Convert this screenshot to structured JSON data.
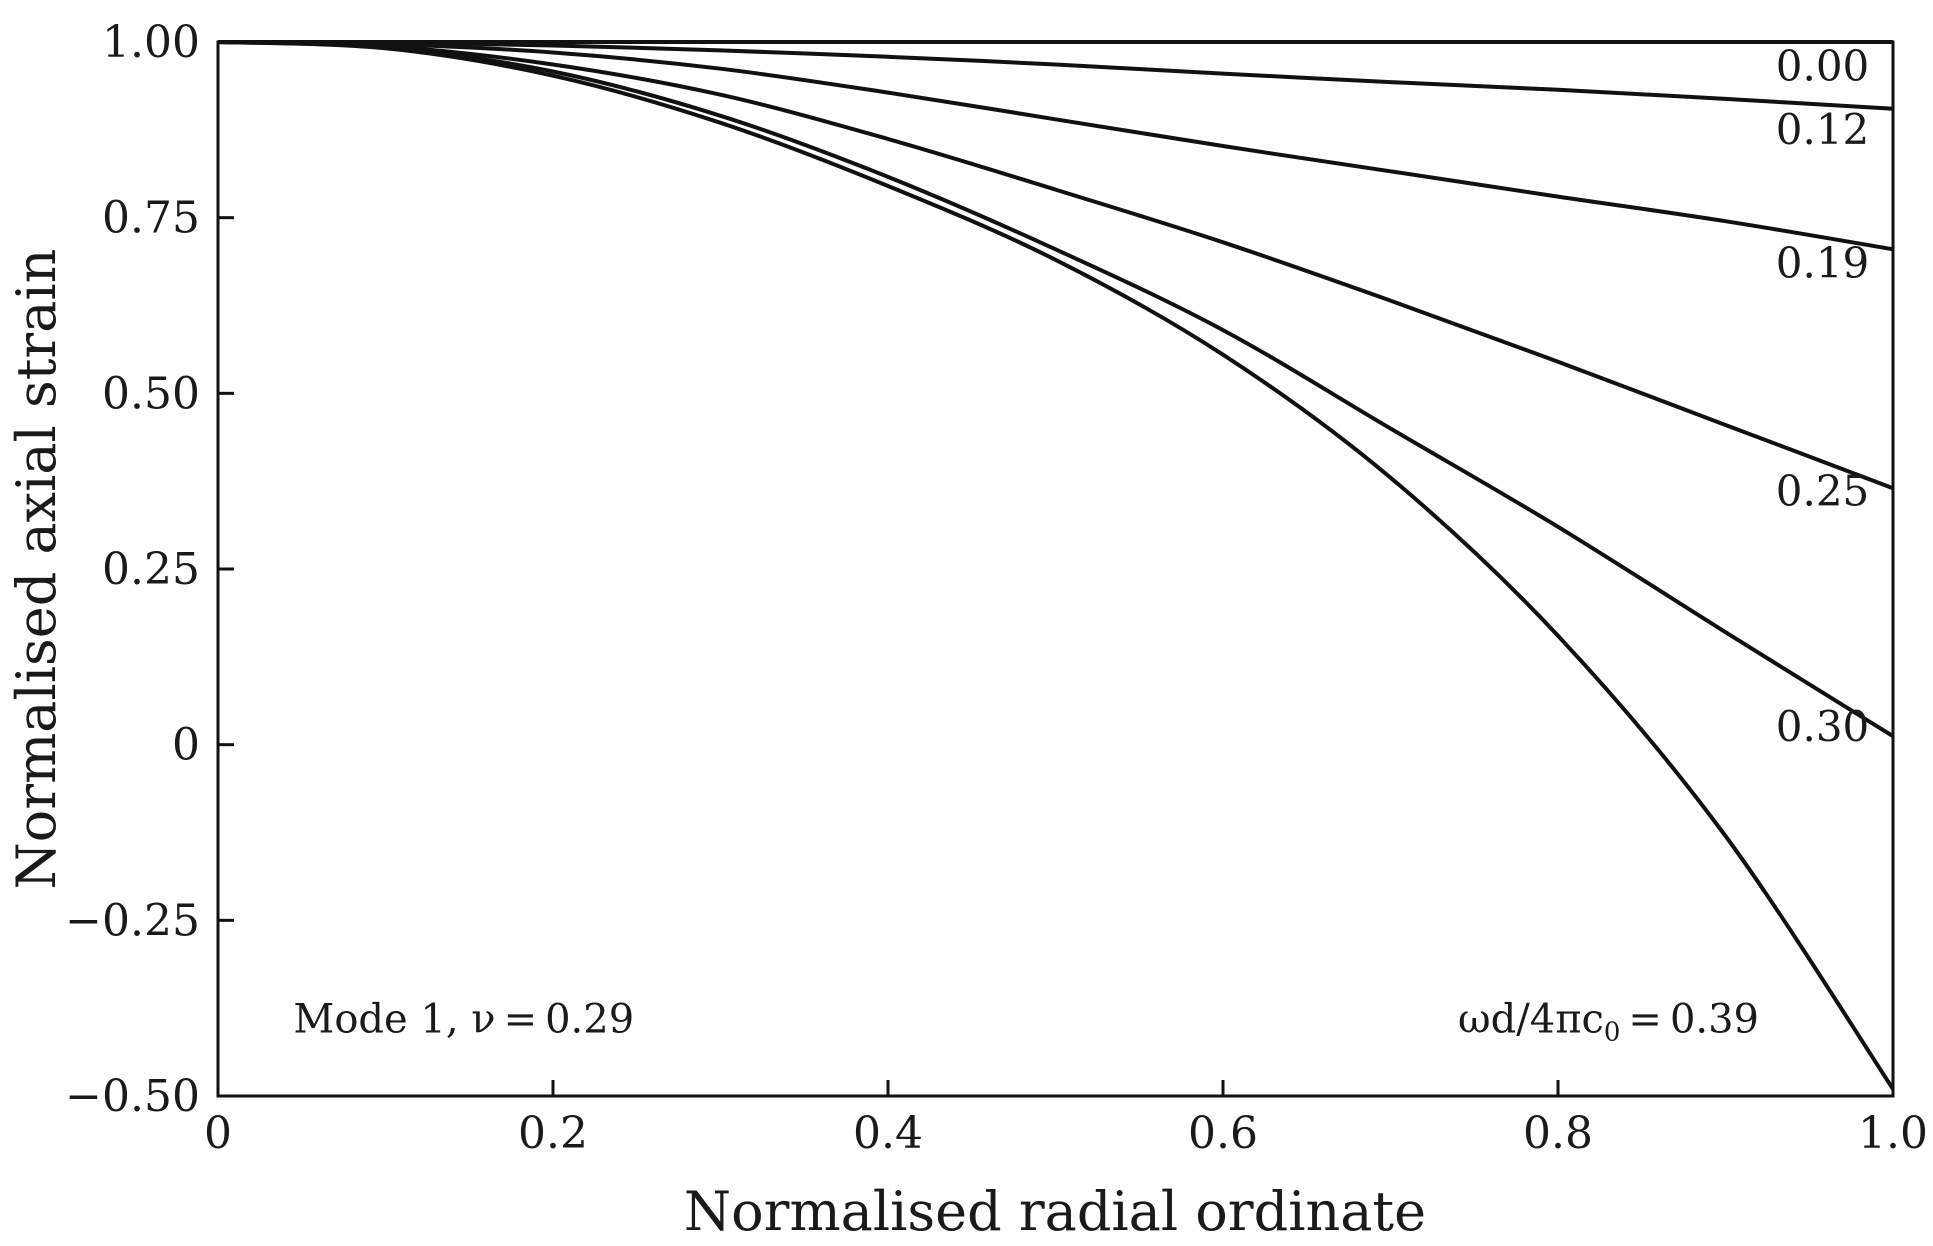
{
  "chart_data": {
    "type": "line",
    "title": "",
    "xlabel": "Normalised radial ordinate",
    "ylabel": "Normalised axial strain",
    "xlim": [
      0,
      1.0
    ],
    "ylim": [
      -0.5,
      1.0
    ],
    "x_ticks": [
      {
        "value": 0,
        "label": "0"
      },
      {
        "value": 0.2,
        "label": "0.2"
      },
      {
        "value": 0.4,
        "label": "0.4"
      },
      {
        "value": 0.6,
        "label": "0.6"
      },
      {
        "value": 0.8,
        "label": "0.8"
      },
      {
        "value": 1.0,
        "label": "1.0"
      }
    ],
    "y_ticks": [
      {
        "value": 1.0,
        "label": "1.00"
      },
      {
        "value": 0.75,
        "label": "0.75"
      },
      {
        "value": 0.5,
        "label": "0.50"
      },
      {
        "value": 0.25,
        "label": "0.25"
      },
      {
        "value": 0,
        "label": "0"
      },
      {
        "value": -0.25,
        "label": "−0.25"
      },
      {
        "value": -0.5,
        "label": "−0.50"
      }
    ],
    "grid": false,
    "x": [
      0,
      0.1,
      0.2,
      0.3,
      0.4,
      0.5,
      0.6,
      0.7,
      0.8,
      0.9,
      1.0
    ],
    "series": [
      {
        "name": "0.00",
        "label_pos": [
          0.93,
          0.965
        ],
        "values": [
          1.0,
          1.0,
          1.0,
          1.0,
          1.0,
          1.0,
          1.0,
          1.0,
          1.0,
          1.0,
          1.0
        ]
      },
      {
        "name": "0.12",
        "label_pos": [
          0.93,
          0.875
        ],
        "values": [
          1.0,
          0.999,
          0.995,
          0.988,
          0.979,
          0.968,
          0.955,
          0.943,
          0.932,
          0.919,
          0.905
        ]
      },
      {
        "name": "0.19",
        "label_pos": [
          0.93,
          0.685
        ],
        "values": [
          1.0,
          0.997,
          0.985,
          0.962,
          0.928,
          0.89,
          0.852,
          0.816,
          0.78,
          0.745,
          0.705
        ]
      },
      {
        "name": "0.25",
        "label_pos": [
          0.93,
          0.36
        ],
        "values": [
          1.0,
          0.994,
          0.968,
          0.925,
          0.862,
          0.79,
          0.715,
          0.632,
          0.545,
          0.455,
          0.365
        ]
      },
      {
        "name": "0.30",
        "label_pos": [
          0.93,
          0.025
        ],
        "values": [
          1.0,
          0.992,
          0.958,
          0.895,
          0.808,
          0.705,
          0.59,
          0.45,
          0.31,
          0.16,
          0.012
        ]
      },
      {
        "name": "0.39",
        "values": [
          1.0,
          0.991,
          0.952,
          0.885,
          0.795,
          0.69,
          0.555,
          0.38,
          0.155,
          -0.13,
          -0.49
        ]
      }
    ],
    "annotations": [
      {
        "id": "mode",
        "text": "Mode 1, ν = 0.29",
        "pos": [
          0.045,
          -0.39
        ]
      },
      {
        "id": "freq",
        "text": "0.39",
        "pos": [
          0.92,
          -0.39
        ]
      }
    ]
  }
}
